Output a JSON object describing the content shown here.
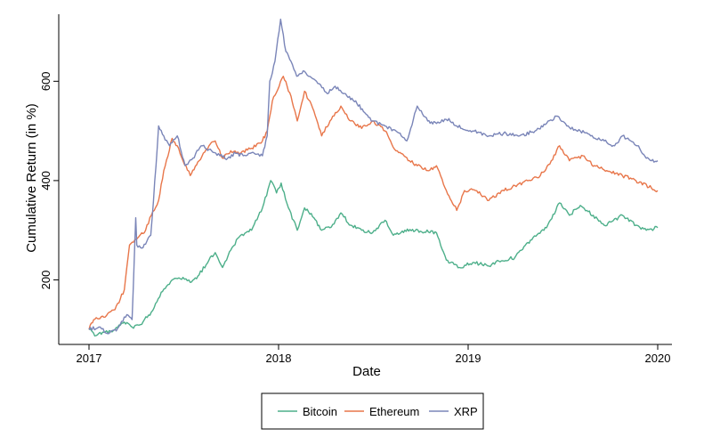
{
  "chart_data": {
    "type": "line",
    "title": "",
    "xlabel": "Date",
    "ylabel": "Cumulative Return (in %)",
    "x_range": [
      "2017-01-01",
      "2020-01-01"
    ],
    "ylim": [
      70,
      735
    ],
    "x_ticks": [
      {
        "date": "2017-01-01",
        "label": "2017"
      },
      {
        "date": "2018-01-01",
        "label": "2018"
      },
      {
        "date": "2019-01-01",
        "label": "2019"
      },
      {
        "date": "2020-01-01",
        "label": "2020"
      }
    ],
    "y_ticks": [
      200,
      400,
      600
    ],
    "grid": false,
    "legend_position": "bottom",
    "series": [
      {
        "name": "Bitcoin",
        "color": "#4daf8a",
        "points": [
          [
            "2017-01-01",
            100
          ],
          [
            "2017-01-15",
            88
          ],
          [
            "2017-02-01",
            95
          ],
          [
            "2017-02-20",
            100
          ],
          [
            "2017-03-10",
            115
          ],
          [
            "2017-03-25",
            105
          ],
          [
            "2017-04-10",
            110
          ],
          [
            "2017-05-01",
            135
          ],
          [
            "2017-05-20",
            175
          ],
          [
            "2017-06-10",
            200
          ],
          [
            "2017-07-01",
            205
          ],
          [
            "2017-07-15",
            195
          ],
          [
            "2017-08-01",
            210
          ],
          [
            "2017-08-20",
            240
          ],
          [
            "2017-09-01",
            255
          ],
          [
            "2017-09-15",
            225
          ],
          [
            "2017-10-01",
            260
          ],
          [
            "2017-10-20",
            290
          ],
          [
            "2017-11-10",
            300
          ],
          [
            "2017-12-01",
            345
          ],
          [
            "2017-12-17",
            400
          ],
          [
            "2017-12-28",
            375
          ],
          [
            "2018-01-06",
            395
          ],
          [
            "2018-01-20",
            345
          ],
          [
            "2018-02-06",
            300
          ],
          [
            "2018-02-20",
            345
          ],
          [
            "2018-03-10",
            325
          ],
          [
            "2018-03-25",
            300
          ],
          [
            "2018-04-10",
            305
          ],
          [
            "2018-05-01",
            335
          ],
          [
            "2018-05-20",
            310
          ],
          [
            "2018-06-10",
            300
          ],
          [
            "2018-07-01",
            295
          ],
          [
            "2018-07-25",
            320
          ],
          [
            "2018-08-10",
            290
          ],
          [
            "2018-09-01",
            300
          ],
          [
            "2018-10-01",
            298
          ],
          [
            "2018-11-01",
            295
          ],
          [
            "2018-11-20",
            240
          ],
          [
            "2018-12-15",
            225
          ],
          [
            "2019-01-10",
            235
          ],
          [
            "2019-02-10",
            228
          ],
          [
            "2019-03-01",
            238
          ],
          [
            "2019-04-01",
            245
          ],
          [
            "2019-05-01",
            280
          ],
          [
            "2019-06-01",
            305
          ],
          [
            "2019-06-26",
            355
          ],
          [
            "2019-07-15",
            330
          ],
          [
            "2019-08-05",
            350
          ],
          [
            "2019-08-30",
            330
          ],
          [
            "2019-09-20",
            310
          ],
          [
            "2019-10-25",
            330
          ],
          [
            "2019-11-20",
            310
          ],
          [
            "2019-12-10",
            300
          ],
          [
            "2020-01-01",
            305
          ]
        ]
      },
      {
        "name": "Ethereum",
        "color": "#e8764a",
        "points": [
          [
            "2017-01-01",
            100
          ],
          [
            "2017-01-10",
            120
          ],
          [
            "2017-02-01",
            125
          ],
          [
            "2017-02-20",
            140
          ],
          [
            "2017-03-10",
            180
          ],
          [
            "2017-03-20",
            270
          ],
          [
            "2017-04-05",
            285
          ],
          [
            "2017-04-20",
            300
          ],
          [
            "2017-05-01",
            330
          ],
          [
            "2017-05-15",
            360
          ],
          [
            "2017-05-25",
            420
          ],
          [
            "2017-06-10",
            485
          ],
          [
            "2017-06-20",
            470
          ],
          [
            "2017-07-01",
            440
          ],
          [
            "2017-07-15",
            410
          ],
          [
            "2017-08-01",
            440
          ],
          [
            "2017-08-20",
            470
          ],
          [
            "2017-09-01",
            480
          ],
          [
            "2017-09-15",
            445
          ],
          [
            "2017-10-01",
            460
          ],
          [
            "2017-10-20",
            455
          ],
          [
            "2017-11-10",
            465
          ],
          [
            "2017-12-01",
            480
          ],
          [
            "2017-12-10",
            500
          ],
          [
            "2017-12-20",
            560
          ],
          [
            "2018-01-10",
            610
          ],
          [
            "2018-01-25",
            570
          ],
          [
            "2018-02-06",
            520
          ],
          [
            "2018-02-20",
            580
          ],
          [
            "2018-03-10",
            540
          ],
          [
            "2018-03-25",
            490
          ],
          [
            "2018-04-10",
            520
          ],
          [
            "2018-05-01",
            550
          ],
          [
            "2018-05-20",
            520
          ],
          [
            "2018-06-10",
            505
          ],
          [
            "2018-07-01",
            520
          ],
          [
            "2018-07-25",
            500
          ],
          [
            "2018-08-15",
            460
          ],
          [
            "2018-09-10",
            440
          ],
          [
            "2018-09-25",
            430
          ],
          [
            "2018-10-15",
            420
          ],
          [
            "2018-11-01",
            430
          ],
          [
            "2018-11-20",
            380
          ],
          [
            "2018-12-10",
            340
          ],
          [
            "2018-12-25",
            380
          ],
          [
            "2019-01-15",
            380
          ],
          [
            "2019-02-10",
            360
          ],
          [
            "2019-03-01",
            375
          ],
          [
            "2019-04-01",
            390
          ],
          [
            "2019-05-01",
            400
          ],
          [
            "2019-05-20",
            410
          ],
          [
            "2019-06-10",
            440
          ],
          [
            "2019-06-26",
            470
          ],
          [
            "2019-07-15",
            440
          ],
          [
            "2019-08-10",
            450
          ],
          [
            "2019-09-01",
            430
          ],
          [
            "2019-09-25",
            420
          ],
          [
            "2019-10-25",
            410
          ],
          [
            "2019-11-20",
            400
          ],
          [
            "2019-12-20",
            385
          ],
          [
            "2020-01-01",
            380
          ]
        ]
      },
      {
        "name": "XRP",
        "color": "#7a85b8",
        "points": [
          [
            "2017-01-01",
            100
          ],
          [
            "2017-01-20",
            105
          ],
          [
            "2017-02-05",
            92
          ],
          [
            "2017-02-25",
            102
          ],
          [
            "2017-03-15",
            130
          ],
          [
            "2017-03-25",
            120
          ],
          [
            "2017-04-01",
            325
          ],
          [
            "2017-04-03",
            270
          ],
          [
            "2017-04-15",
            265
          ],
          [
            "2017-04-30",
            290
          ],
          [
            "2017-05-10",
            430
          ],
          [
            "2017-05-15",
            510
          ],
          [
            "2017-05-25",
            490
          ],
          [
            "2017-06-05",
            470
          ],
          [
            "2017-06-20",
            490
          ],
          [
            "2017-07-05",
            430
          ],
          [
            "2017-07-20",
            445
          ],
          [
            "2017-08-05",
            470
          ],
          [
            "2017-08-25",
            460
          ],
          [
            "2017-09-10",
            450
          ],
          [
            "2017-09-25",
            445
          ],
          [
            "2017-10-10",
            455
          ],
          [
            "2017-10-25",
            450
          ],
          [
            "2017-11-15",
            455
          ],
          [
            "2017-12-01",
            450
          ],
          [
            "2017-12-10",
            490
          ],
          [
            "2017-12-15",
            600
          ],
          [
            "2017-12-25",
            640
          ],
          [
            "2018-01-05",
            725
          ],
          [
            "2018-01-15",
            660
          ],
          [
            "2018-01-25",
            640
          ],
          [
            "2018-02-05",
            610
          ],
          [
            "2018-02-20",
            620
          ],
          [
            "2018-03-15",
            600
          ],
          [
            "2018-04-05",
            575
          ],
          [
            "2018-04-20",
            590
          ],
          [
            "2018-05-10",
            575
          ],
          [
            "2018-06-01",
            555
          ],
          [
            "2018-07-01",
            520
          ],
          [
            "2018-07-25",
            510
          ],
          [
            "2018-08-15",
            500
          ],
          [
            "2018-09-05",
            480
          ],
          [
            "2018-09-25",
            550
          ],
          [
            "2018-10-15",
            520
          ],
          [
            "2018-11-01",
            515
          ],
          [
            "2018-11-25",
            525
          ],
          [
            "2018-12-10",
            510
          ],
          [
            "2019-01-10",
            500
          ],
          [
            "2019-02-10",
            490
          ],
          [
            "2019-03-10",
            495
          ],
          [
            "2019-04-10",
            490
          ],
          [
            "2019-05-10",
            500
          ],
          [
            "2019-06-01",
            515
          ],
          [
            "2019-06-20",
            530
          ],
          [
            "2019-07-10",
            510
          ],
          [
            "2019-08-05",
            500
          ],
          [
            "2019-08-25",
            490
          ],
          [
            "2019-09-20",
            480
          ],
          [
            "2019-10-10",
            470
          ],
          [
            "2019-10-25",
            490
          ],
          [
            "2019-11-10",
            480
          ],
          [
            "2019-11-25",
            470
          ],
          [
            "2019-12-10",
            445
          ],
          [
            "2019-12-20",
            440
          ],
          [
            "2020-01-01",
            440
          ]
        ]
      }
    ]
  }
}
